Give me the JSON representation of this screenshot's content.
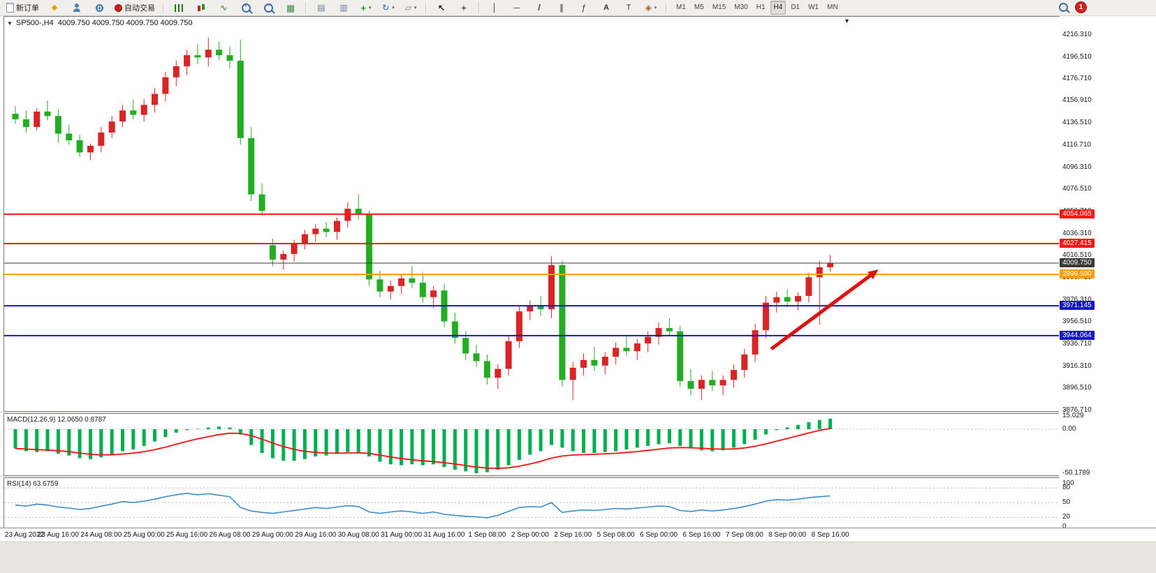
{
  "toolbar": {
    "new_order": "新订单",
    "autotrading": "自动交易",
    "timeframes": [
      "M1",
      "M5",
      "M15",
      "M30",
      "H1",
      "H4",
      "D1",
      "W1",
      "MN"
    ],
    "active_timeframe": "H4",
    "notification_count": "1"
  },
  "chart": {
    "symbol": "SP500-,H4",
    "ohlc": "4009.750 4009.750 4009.750 4009.750"
  },
  "chart_data": [
    {
      "type": "candlestick",
      "symbol": "SP500-",
      "timeframe": "H4",
      "up_color": "#d92525",
      "down_color": "#22ad22",
      "ylim": [
        3876.71,
        4216.31
      ],
      "y_axis_labels": [
        "4216.310",
        "4196.510",
        "4176.710",
        "4156.910",
        "4136.510",
        "4116.710",
        "4096.310",
        "4076.510",
        "4056.710",
        "4036.310",
        "4016.510",
        "3996.710",
        "3976.310",
        "3956.510",
        "3936.710",
        "3916.310",
        "3896.510",
        "3876.710"
      ],
      "x_labels": [
        "23 Aug 2022",
        "23 Aug 16:00",
        "24 Aug 08:00",
        "25 Aug 00:00",
        "25 Aug 16:00",
        "26 Aug 08:00",
        "29 Aug 00:00",
        "29 Aug 16:00",
        "30 Aug 08:00",
        "31 Aug 00:00",
        "31 Aug 16:00",
        "1 Sep 08:00",
        "2 Sep 00:00",
        "2 Sep 16:00",
        "5 Sep 08:00",
        "6 Sep 00:00",
        "6 Sep 16:00",
        "7 Sep 08:00",
        "8 Sep 00:00",
        "8 Sep 16:00"
      ],
      "candles": [
        [
          4145,
          4152,
          4136,
          4140
        ],
        [
          4140,
          4148,
          4128,
          4133
        ],
        [
          4133,
          4150,
          4130,
          4147
        ],
        [
          4147,
          4157,
          4139,
          4143
        ],
        [
          4143,
          4149,
          4119,
          4127
        ],
        [
          4127,
          4135,
          4117,
          4121
        ],
        [
          4121,
          4126,
          4106,
          4110
        ],
        [
          4110,
          4118,
          4103,
          4116
        ],
        [
          4116,
          4133,
          4110,
          4128
        ],
        [
          4128,
          4143,
          4123,
          4138
        ],
        [
          4138,
          4153,
          4133,
          4148
        ],
        [
          4148,
          4158,
          4140,
          4144
        ],
        [
          4144,
          4158,
          4138,
          4153
        ],
        [
          4153,
          4168,
          4146,
          4163
        ],
        [
          4163,
          4183,
          4156,
          4178
        ],
        [
          4178,
          4193,
          4170,
          4188
        ],
        [
          4188,
          4203,
          4180,
          4198
        ],
        [
          4198,
          4208,
          4190,
          4196
        ],
        [
          4196,
          4214,
          4188,
          4203
        ],
        [
          4203,
          4210,
          4194,
          4198
        ],
        [
          4198,
          4206,
          4186,
          4193
        ],
        [
          4193,
          4212,
          4117,
          4123
        ],
        [
          4123,
          4133,
          4066,
          4072
        ],
        [
          4072,
          4082,
          4053,
          4057
        ],
        [
          4026,
          4032,
          4007,
          4013
        ],
        [
          4013,
          4021,
          4004,
          4018
        ],
        [
          4018,
          4031,
          4011,
          4028
        ],
        [
          4028,
          4040,
          4022,
          4036
        ],
        [
          4036,
          4045,
          4029,
          4041
        ],
        [
          4041,
          4047,
          4033,
          4038
        ],
        [
          4038,
          4051,
          4031,
          4048
        ],
        [
          4048,
          4065,
          4042,
          4059
        ],
        [
          4059,
          4072,
          4049,
          4054
        ],
        [
          4054,
          4057,
          3989,
          3995
        ],
        [
          3995,
          4003,
          3979,
          3984
        ],
        [
          3984,
          3994,
          3977,
          3989
        ],
        [
          3989,
          4000,
          3982,
          3996
        ],
        [
          3996,
          4007,
          3987,
          3992
        ],
        [
          3992,
          4001,
          3974,
          3979
        ],
        [
          3979,
          3989,
          3969,
          3985
        ],
        [
          3985,
          3991,
          3952,
          3957
        ],
        [
          3957,
          3965,
          3937,
          3942
        ],
        [
          3942,
          3948,
          3922,
          3928
        ],
        [
          3928,
          3936,
          3916,
          3921
        ],
        [
          3921,
          3927,
          3900,
          3906
        ],
        [
          3906,
          3918,
          3896,
          3914
        ],
        [
          3914,
          3944,
          3908,
          3939
        ],
        [
          3939,
          3971,
          3933,
          3966
        ],
        [
          3966,
          3976,
          3958,
          3971
        ],
        [
          3971,
          3980,
          3962,
          3968
        ],
        [
          3968,
          4016,
          3960,
          4008
        ],
        [
          4008,
          4012,
          3898,
          3904
        ],
        [
          3904,
          3920,
          3886,
          3915
        ],
        [
          3915,
          3928,
          3908,
          3922
        ],
        [
          3922,
          3934,
          3912,
          3917
        ],
        [
          3917,
          3929,
          3909,
          3925
        ],
        [
          3925,
          3938,
          3918,
          3933
        ],
        [
          3933,
          3944,
          3926,
          3930
        ],
        [
          3930,
          3941,
          3922,
          3937
        ],
        [
          3937,
          3948,
          3929,
          3943
        ],
        [
          3943,
          3956,
          3936,
          3951
        ],
        [
          3951,
          3960,
          3944,
          3948
        ],
        [
          3948,
          3953,
          3898,
          3903
        ],
        [
          3903,
          3914,
          3890,
          3896
        ],
        [
          3896,
          3908,
          3886,
          3904
        ],
        [
          3904,
          3912,
          3894,
          3899
        ],
        [
          3899,
          3908,
          3890,
          3904
        ],
        [
          3904,
          3918,
          3897,
          3913
        ],
        [
          3913,
          3932,
          3906,
          3927
        ],
        [
          3927,
          3955,
          3920,
          3949
        ],
        [
          3949,
          3980,
          3942,
          3974
        ],
        [
          3974,
          3984,
          3965,
          3979
        ],
        [
          3979,
          3986,
          3970,
          3975
        ],
        [
          3975,
          3983,
          3967,
          3980
        ],
        [
          3980,
          4001,
          3974,
          3997
        ],
        [
          3997,
          4012,
          3954,
          4006
        ],
        [
          4006,
          4017,
          4002,
          4009.75
        ]
      ],
      "hlines": [
        {
          "price": 4054.065,
          "label": "4054.065",
          "color": "#fd1515",
          "width": 2
        },
        {
          "price": 4027.415,
          "label": "4027.415",
          "color": "#fd1515",
          "width": 2
        },
        {
          "price": 4009.75,
          "label": "4009.750",
          "color": "#3a3a3a",
          "width": 1,
          "kind": "current-price"
        },
        {
          "price": 3999.59,
          "label": "3999.590",
          "color": "#ff9c00",
          "width": 2
        },
        {
          "price": 3971.145,
          "label": "3971.145",
          "color": "#1515cd",
          "width": 2
        },
        {
          "price": 3944.064,
          "label": "3944.064",
          "color": "#1515cd",
          "width": 2
        }
      ],
      "arrow": {
        "from_bar": 70.5,
        "from_price": 3932,
        "to_bar": 80.5,
        "to_price": 4004,
        "color": "#e01010"
      }
    },
    {
      "type": "bar",
      "name": "MACD(12,26,9)",
      "label": "MACD(12,26,9) 12.0650 0.8787",
      "main_value": 12.065,
      "signal_value": 0.8787,
      "scale_labels": [
        "15.029",
        "0.00",
        "-50.1789"
      ],
      "ylim": [
        -50.1789,
        15.029
      ],
      "histogram_color": "#00b050",
      "signal_color": "#ff1010",
      "histogram": [
        -22,
        -25,
        -26,
        -25,
        -28,
        -30,
        -33,
        -34,
        -32,
        -29,
        -25,
        -23,
        -19,
        -14,
        -9,
        -4,
        -1,
        0.5,
        2,
        3,
        2,
        -6,
        -18,
        -27,
        -33,
        -36,
        -36,
        -34,
        -31,
        -30,
        -28,
        -26,
        -26,
        -31,
        -37,
        -40,
        -41,
        -40,
        -41,
        -40,
        -43,
        -46,
        -48,
        -50.1789,
        -49,
        -46,
        -41,
        -35,
        -29,
        -25,
        -18,
        -21,
        -25,
        -27,
        -27,
        -26,
        -25,
        -23,
        -21,
        -19,
        -17,
        -16,
        -19,
        -22,
        -24,
        -25,
        -24,
        -21,
        -17,
        -12,
        -6,
        -1,
        2,
        5,
        8,
        10.5,
        12.065
      ],
      "signal": [
        -22,
        -22.6,
        -23.3,
        -23.6,
        -24.5,
        -25.6,
        -27.1,
        -28.5,
        -29.2,
        -29.1,
        -28.3,
        -27.2,
        -25.6,
        -23.3,
        -20.4,
        -17.1,
        -13.9,
        -11,
        -8.4,
        -6.1,
        -4.5,
        -4.8,
        -7.4,
        -11.3,
        -15.7,
        -19.7,
        -23,
        -25.2,
        -26.4,
        -27.1,
        -27.3,
        -27,
        -26.8,
        -27.6,
        -29.5,
        -31.6,
        -33.5,
        -34.8,
        -36,
        -36.8,
        -38.1,
        -39.6,
        -41.3,
        -43.1,
        -44.3,
        -44.6,
        -43.9,
        -42.1,
        -39.5,
        -36.6,
        -32.9,
        -30.5,
        -29.4,
        -28.9,
        -28.5,
        -28,
        -27.4,
        -26.5,
        -25.4,
        -24.1,
        -22.7,
        -21.4,
        -20.9,
        -21.1,
        -21.7,
        -22.4,
        -22.7,
        -22.4,
        -21.3,
        -19.4,
        -16.7,
        -13.6,
        -10.5,
        -7.4,
        -4.3,
        -1.3,
        0.88
      ]
    },
    {
      "type": "line",
      "name": "RSI(14)",
      "label": "RSI(14) 63.6759",
      "value": 63.6759,
      "scale_labels": [
        "100",
        "80",
        "50",
        "20",
        "0"
      ],
      "levels": [
        80,
        50,
        20
      ],
      "ylim": [
        0,
        100
      ],
      "line_color": "#3c8cc8",
      "values": [
        45,
        43,
        47,
        45,
        41,
        39,
        36,
        38,
        43,
        47,
        52,
        50,
        53,
        57,
        62,
        66,
        69,
        66,
        68,
        65,
        62,
        40,
        33,
        30,
        28,
        31,
        34,
        37,
        40,
        38,
        41,
        44,
        42,
        31,
        28,
        31,
        33,
        31,
        28,
        31,
        26,
        24,
        22,
        21,
        19,
        24,
        32,
        40,
        42,
        41,
        50,
        30,
        33,
        35,
        34,
        36,
        38,
        37,
        39,
        41,
        43,
        42,
        34,
        32,
        35,
        33,
        35,
        38,
        42,
        47,
        53,
        56,
        55,
        57,
        60,
        62,
        63.6759
      ]
    }
  ]
}
